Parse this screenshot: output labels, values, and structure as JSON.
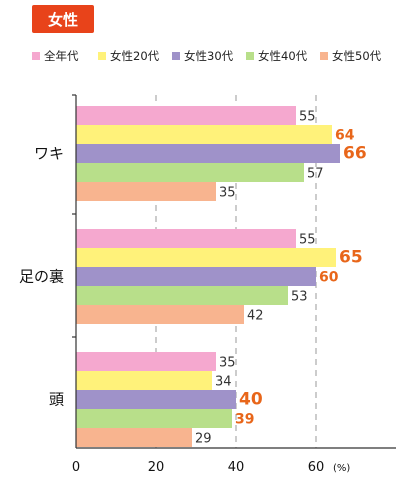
{
  "badge": {
    "label": "女性"
  },
  "chart_data": {
    "type": "bar",
    "orientation": "horizontal",
    "title": "",
    "xlabel": "",
    "ylabel": "",
    "unit": "(%)",
    "xlim": [
      0,
      80
    ],
    "x_ticks": [
      "0",
      "20",
      "40",
      "60"
    ],
    "grid": "vertical-dashed",
    "legend_position": "top",
    "categories": [
      "ワキ",
      "足の裏",
      "頭"
    ],
    "series": [
      {
        "name": "全年代",
        "color": "#f5a8cf",
        "values": [
          55,
          55,
          35
        ]
      },
      {
        "name": "女性20代",
        "color": "#fff27a",
        "values": [
          64,
          65,
          34
        ]
      },
      {
        "name": "女性30代",
        "color": "#9f92c9",
        "values": [
          66,
          60,
          40
        ]
      },
      {
        "name": "女性40代",
        "color": "#b8df8a",
        "values": [
          57,
          53,
          39
        ]
      },
      {
        "name": "女性50代",
        "color": "#f8b48f",
        "values": [
          35,
          42,
          29
        ]
      }
    ],
    "highlight": {
      "color": "#e8661a",
      "points": [
        [
          0,
          1
        ],
        [
          0,
          2
        ],
        [
          1,
          1
        ],
        [
          1,
          2
        ],
        [
          2,
          2
        ],
        [
          2,
          3
        ]
      ],
      "top_points": [
        [
          0,
          2
        ],
        [
          1,
          1
        ],
        [
          2,
          2
        ]
      ]
    }
  }
}
